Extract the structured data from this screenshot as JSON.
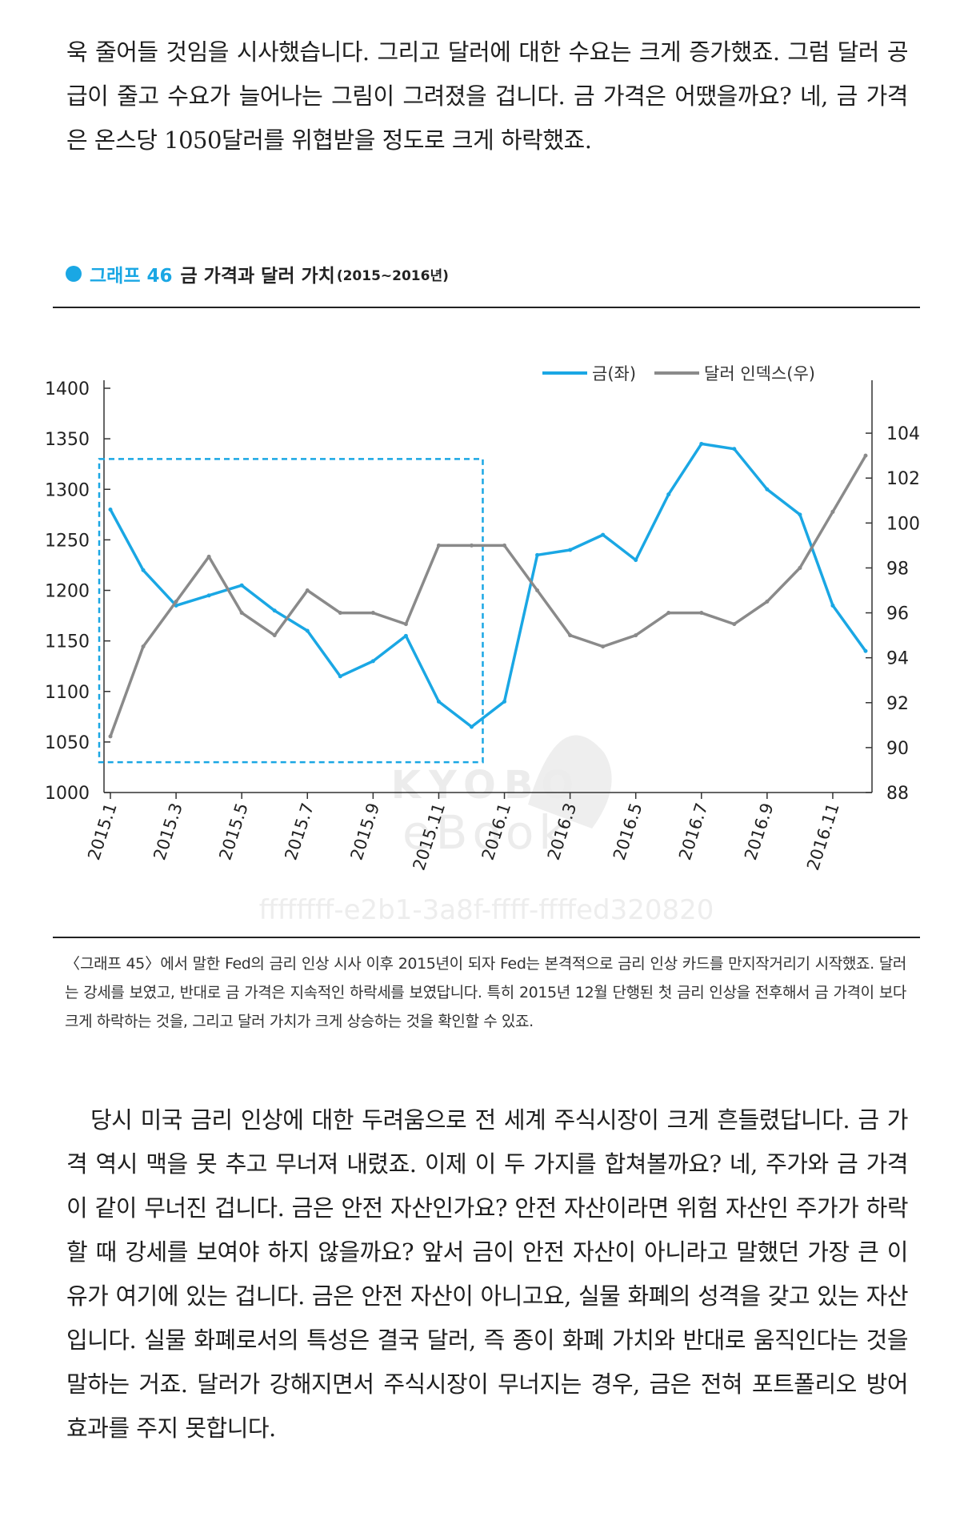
{
  "body_top": "욱 줄어들 것임을 시사했습니다. 그리고 달러에 대한 수요는 크게 증가했죠. 그럼 달러 공급이 줄고 수요가 늘어나는 그림이 그려졌을 겁니다. 금 가격은 어땠을까요? 네, 금 가격은 온스당 1050달러를 위협받을 정도로 크게 하락했죠.",
  "graph": {
    "label": "그래프 46",
    "title": "금 가격과 달러 가치",
    "period": "(2015~2016년)"
  },
  "watermark": {
    "brand": "KYOBO",
    "sub": "eBook",
    "code": "ffffffff-e2b1-3a8f-ffff-ffffed320820"
  },
  "caption": "〈그래프 45〉에서 말한 Fed의 금리 인상 시사 이후 2015년이 되자 Fed는 본격적으로 금리 인상 카드를 만지작거리기 시작했죠. 달러는 강세를 보였고, 반대로 금 가격은 지속적인 하락세를 보였답니다. 특히 2015년 12월 단행된 첫 금리 인상을 전후해서 금 가격이 보다 크게 하락하는 것을, 그리고 달러 가치가 크게 상승하는 것을 확인할 수 있죠.",
  "body_bottom": "당시 미국 금리 인상에 대한 두려움으로 전 세계 주식시장이 크게 흔들렸답니다. 금 가격 역시 맥을 못 추고 무너져 내렸죠. 이제 이 두 가지를 합쳐볼까요? 네, 주가와 금 가격이 같이 무너진 겁니다. 금은 안전 자산인가요? 안전 자산이라면 위험 자산인 주가가 하락할 때 강세를 보여야 하지 않을까요? 앞서 금이 안전 자산이 아니라고 말했던 가장 큰 이유가 여기에 있는 겁니다. 금은 안전 자산이 아니고요, 실물 화폐의 성격을 갖고 있는 자산입니다. 실물 화폐로서의 특성은 결국 달러, 즉 종이 화폐 가치와 반대로 움직인다는 것을 말하는 거죠. 달러가 강해지면서 주식시장이 무너지는 경우, 금은 전혀 포트폴리오 방어 효과를 주지 못합니다.",
  "colors": {
    "gold": "#1aa7e4",
    "dollar": "#8a8a8a",
    "accent": "#1aa7e4"
  },
  "chart_data": {
    "type": "line",
    "x": [
      "2015.1",
      "2015.2",
      "2015.3",
      "2015.4",
      "2015.5",
      "2015.6",
      "2015.7",
      "2015.8",
      "2015.9",
      "2015.10",
      "2015.11",
      "2015.12",
      "2016.1",
      "2016.2",
      "2016.3",
      "2016.4",
      "2016.5",
      "2016.6",
      "2016.7",
      "2016.8",
      "2016.9",
      "2016.10",
      "2016.11",
      "2016.12"
    ],
    "x_ticks": [
      "2015.1",
      "2015.3",
      "2015.5",
      "2015.7",
      "2015.9",
      "2015.11",
      "2016.1",
      "2016.3",
      "2016.5",
      "2016.7",
      "2016.9",
      "2016.11"
    ],
    "series": [
      {
        "name": "금(좌)",
        "axis": "left",
        "values": [
          1280,
          1220,
          1185,
          1195,
          1205,
          1180,
          1160,
          1115,
          1130,
          1155,
          1090,
          1065,
          1090,
          1235,
          1240,
          1255,
          1230,
          1295,
          1345,
          1340,
          1300,
          1275,
          1185,
          1140
        ]
      },
      {
        "name": "달러 인덱스(우)",
        "axis": "right",
        "values": [
          90.5,
          94.5,
          96.5,
          98.5,
          96,
          95,
          97,
          96,
          96,
          95.5,
          99,
          99,
          99,
          97,
          95,
          94.5,
          95,
          96,
          96,
          95.5,
          96.5,
          98,
          100.5,
          103
        ]
      }
    ],
    "y_left": {
      "min": 1000,
      "max": 1400,
      "ticks": [
        1000,
        1050,
        1100,
        1150,
        1200,
        1250,
        1300,
        1350,
        1400
      ]
    },
    "y_right": {
      "min": 88,
      "max": 106,
      "ticks": [
        88,
        90,
        92,
        94,
        96,
        98,
        100,
        102,
        104,
        106
      ]
    },
    "highlight": {
      "from": "2015.1",
      "to": "2015.12",
      "note": "dashed box"
    },
    "legend": {
      "gold": "금(좌)",
      "dollar": "달러 인덱스(우)",
      "position": "top-right"
    }
  }
}
